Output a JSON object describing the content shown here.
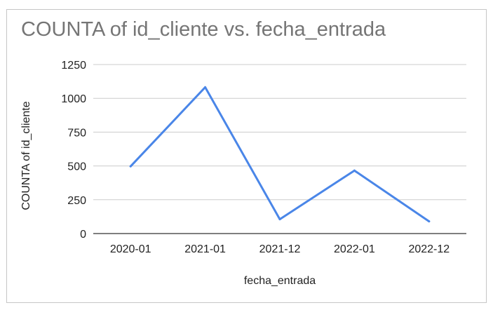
{
  "chart_data": {
    "type": "line",
    "title": "COUNTA of id_cliente vs. fecha_entrada",
    "xlabel": "fecha_entrada",
    "ylabel": "COUNTA of id_cliente",
    "categories": [
      "2020-01",
      "2021-01",
      "2021-12",
      "2022-01",
      "2022-12"
    ],
    "series": [
      {
        "values": [
          497,
          1082,
          106,
          466,
          90
        ]
      }
    ],
    "ylim": [
      0,
      1250
    ],
    "yticks": [
      "0",
      "250",
      "500",
      "750",
      "1000",
      "1250"
    ],
    "grid": true,
    "line_color": "#4a86e8",
    "grid_color": "#cccccc",
    "axis_color": "#333333"
  }
}
